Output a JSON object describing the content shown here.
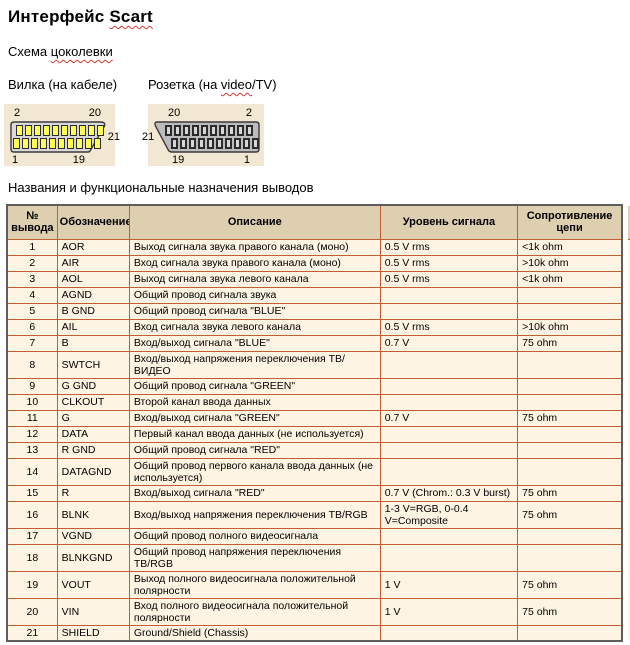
{
  "doc": {
    "title_prefix": "Интерфейс ",
    "title_misspelled": "Scart",
    "pinout_prefix": "Схема ",
    "pinout_misspelled": "цоколевки",
    "plug_label": "Вилка (на кабеле)",
    "socket_label_prefix": "Розетка (на ",
    "socket_label_misspelled": "video",
    "socket_label_suffix": "/TV)",
    "table_caption": "Названия и функциональные назначения выводов"
  },
  "connectors": {
    "pins_per_row": 10,
    "plug": {
      "top_left": "2",
      "top_right": "20",
      "side": "21",
      "bottom_left": "1",
      "bottom_right": "19"
    },
    "socket": {
      "top_left": "20",
      "top_right": "2",
      "side": "21",
      "bottom_left": "19",
      "bottom_right": "1"
    }
  },
  "table": {
    "headers": [
      "№ вывода",
      "Обозначение",
      "Описание",
      "Уровень сигнала",
      "Сопротивление цепи"
    ],
    "rows": [
      [
        "1",
        "AOR",
        "Выход сигнала звука правого канала (моно)",
        "0.5 V rms",
        "<1k ohm"
      ],
      [
        "2",
        "AIR",
        "Вход сигнала звука правого канала (моно)",
        "0.5 V rms",
        ">10k ohm"
      ],
      [
        "3",
        "AOL",
        "Выход сигнала звука левого канала",
        "0.5 V rms",
        "<1k ohm"
      ],
      [
        "4",
        "AGND",
        "Общий провод сигнала звука",
        "",
        ""
      ],
      [
        "5",
        "B GND",
        "Общий провод сигнала \"BLUE\"",
        "",
        ""
      ],
      [
        "6",
        "AIL",
        "Вход сигнала звука левого канала",
        "0.5 V rms",
        ">10k ohm"
      ],
      [
        "7",
        "B",
        "Вход/выход сигнала \"BLUE\"",
        "0.7 V",
        "75 ohm"
      ],
      [
        "8",
        "SWTCH",
        "Вход/выход напряжения переключения ТВ/ВИДЕО",
        "",
        ""
      ],
      [
        "9",
        "G GND",
        "Общий провод сигнала \"GREEN\"",
        "",
        ""
      ],
      [
        "10",
        "CLKOUT",
        "Второй канал ввода данных",
        "",
        ""
      ],
      [
        "11",
        "G",
        "Вход/выход сигнала \"GREEN\"",
        "0.7 V",
        "75 ohm"
      ],
      [
        "12",
        "DATA",
        "Первый канал ввода данных (не используется)",
        "",
        ""
      ],
      [
        "13",
        "R GND",
        "Общий провод сигнала \"RED\"",
        "",
        ""
      ],
      [
        "14",
        "DATAGND",
        "Общий провод первого канала ввода данных (не используется)",
        "",
        ""
      ],
      [
        "15",
        "R",
        "Вход/выход сигнала \"RED\"",
        "0.7 V (Chrom.: 0.3 V burst)",
        "75 ohm"
      ],
      [
        "16",
        "BLNK",
        "Вход/выход напряжения переключения ТВ/RGB",
        "1-3 V=RGB, 0-0.4 V=Composite",
        "75 ohm"
      ],
      [
        "17",
        "VGND",
        "Общий провод полного видеосигнала",
        "",
        ""
      ],
      [
        "18",
        "BLNKGND",
        "Общий провод напряжения переключения ТВ/RGB",
        "",
        ""
      ],
      [
        "19",
        "VOUT",
        "Выход полного видеосигнала положительной полярности",
        "1 V",
        "75 ohm"
      ],
      [
        "20",
        "VIN",
        "Вход полного видеосигнала положительной полярности",
        "1 V",
        "75 ohm"
      ],
      [
        "21",
        "SHIELD",
        "Ground/Shield (Chassis)",
        "",
        ""
      ]
    ]
  },
  "colors": {
    "table_border_inner": "#c25e33",
    "table_border_outer": "#5d5d5d",
    "table_header_bg": "#ddcfb0",
    "table_row_bg": "#fdf4e3",
    "diagram_panel_bg": "#f1e7d3",
    "plug_body": "#d9d9d9",
    "plug_pin": "#ffff55",
    "socket_body": "#bcbcbc",
    "socket_pin": "#d6d6d6",
    "spellcheck_squiggle": "#d43a3a"
  }
}
